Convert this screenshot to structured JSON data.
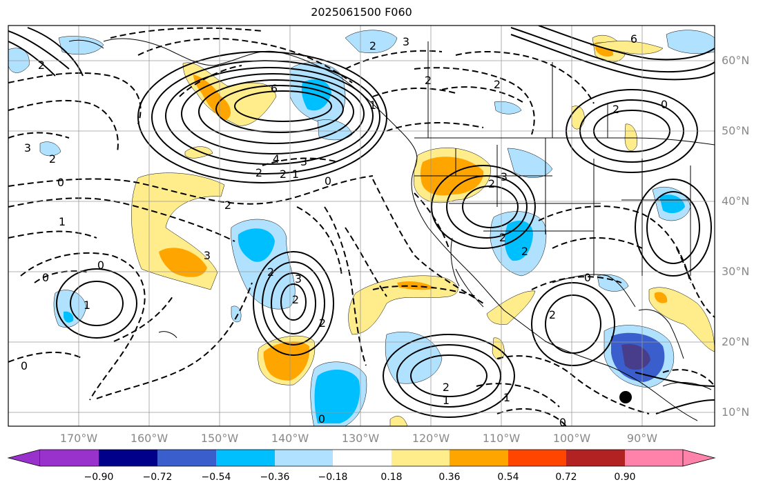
{
  "title": "2025061500 F060",
  "latitude_labels": [
    "60°N",
    "50°N",
    "40°N",
    "30°N",
    "20°N",
    "10°N"
  ],
  "longitude_labels": [
    "170°W",
    "160°W",
    "150°W",
    "140°W",
    "130°W",
    "120°W",
    "110°W",
    "100°W",
    "90°W"
  ],
  "colorbar": {
    "colors": [
      "#9932cc",
      "#00008b",
      "#3a5fcd",
      "#00bfff",
      "#b0e2ff",
      "#ffffff",
      "#ffec8b",
      "#ffa500",
      "#ff4500",
      "#b22222",
      "#ff82ab"
    ],
    "ticks": [
      "−0.90",
      "−0.72",
      "−0.54",
      "−0.36",
      "−0.18",
      "0.18",
      "0.36",
      "0.54",
      "0.72",
      "0.90"
    ]
  },
  "contour_labels": [
    {
      "t": "6"
    },
    {
      "t": "4"
    },
    {
      "t": "3"
    },
    {
      "t": "2"
    },
    {
      "t": "2"
    },
    {
      "t": "1"
    },
    {
      "t": "0"
    },
    {
      "t": "2"
    },
    {
      "t": "0"
    },
    {
      "t": "1"
    },
    {
      "t": "2"
    },
    {
      "t": "3"
    },
    {
      "t": "3"
    },
    {
      "t": "0"
    },
    {
      "t": "0"
    },
    {
      "t": "1"
    },
    {
      "t": "2"
    },
    {
      "t": "3"
    },
    {
      "t": "2"
    },
    {
      "t": "2"
    },
    {
      "t": "2"
    },
    {
      "t": "3"
    },
    {
      "t": "2"
    },
    {
      "t": "1"
    },
    {
      "t": "0"
    },
    {
      "t": "2"
    },
    {
      "t": "2"
    },
    {
      "t": "6"
    },
    {
      "t": "2"
    },
    {
      "t": "0"
    },
    {
      "t": "2"
    },
    {
      "t": "2"
    },
    {
      "t": "0"
    },
    {
      "t": "1"
    },
    {
      "t": "0"
    },
    {
      "t": "2"
    },
    {
      "t": "3"
    },
    {
      "t": "2"
    },
    {
      "t": "1"
    },
    {
      "t": "0"
    },
    {
      "t": "2"
    }
  ]
}
